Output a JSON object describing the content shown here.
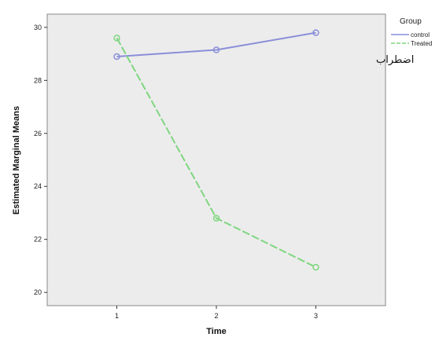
{
  "chart_data": {
    "type": "line",
    "title": "",
    "xlabel": "Time",
    "ylabel": "Estimated Marginal Means",
    "x": [
      1,
      2,
      3
    ],
    "xticks": [
      "1",
      "2",
      "3"
    ],
    "yticks": [
      "20",
      "22",
      "24",
      "26",
      "28",
      "30"
    ],
    "xlim": [
      0.3,
      3.7
    ],
    "ylim": [
      19.5,
      30.5
    ],
    "grid": false,
    "legend_title": "Group",
    "legend_position": "right",
    "annotation": "اضطراب",
    "plot_background": "#ececec",
    "series": [
      {
        "name": "control",
        "values": [
          28.9,
          29.15,
          29.8
        ],
        "color": "#8a8fd8",
        "dash": "solid"
      },
      {
        "name": "Treated",
        "values": [
          29.6,
          22.8,
          20.95
        ],
        "color": "#7fd67f",
        "dash": "dashed"
      }
    ]
  }
}
